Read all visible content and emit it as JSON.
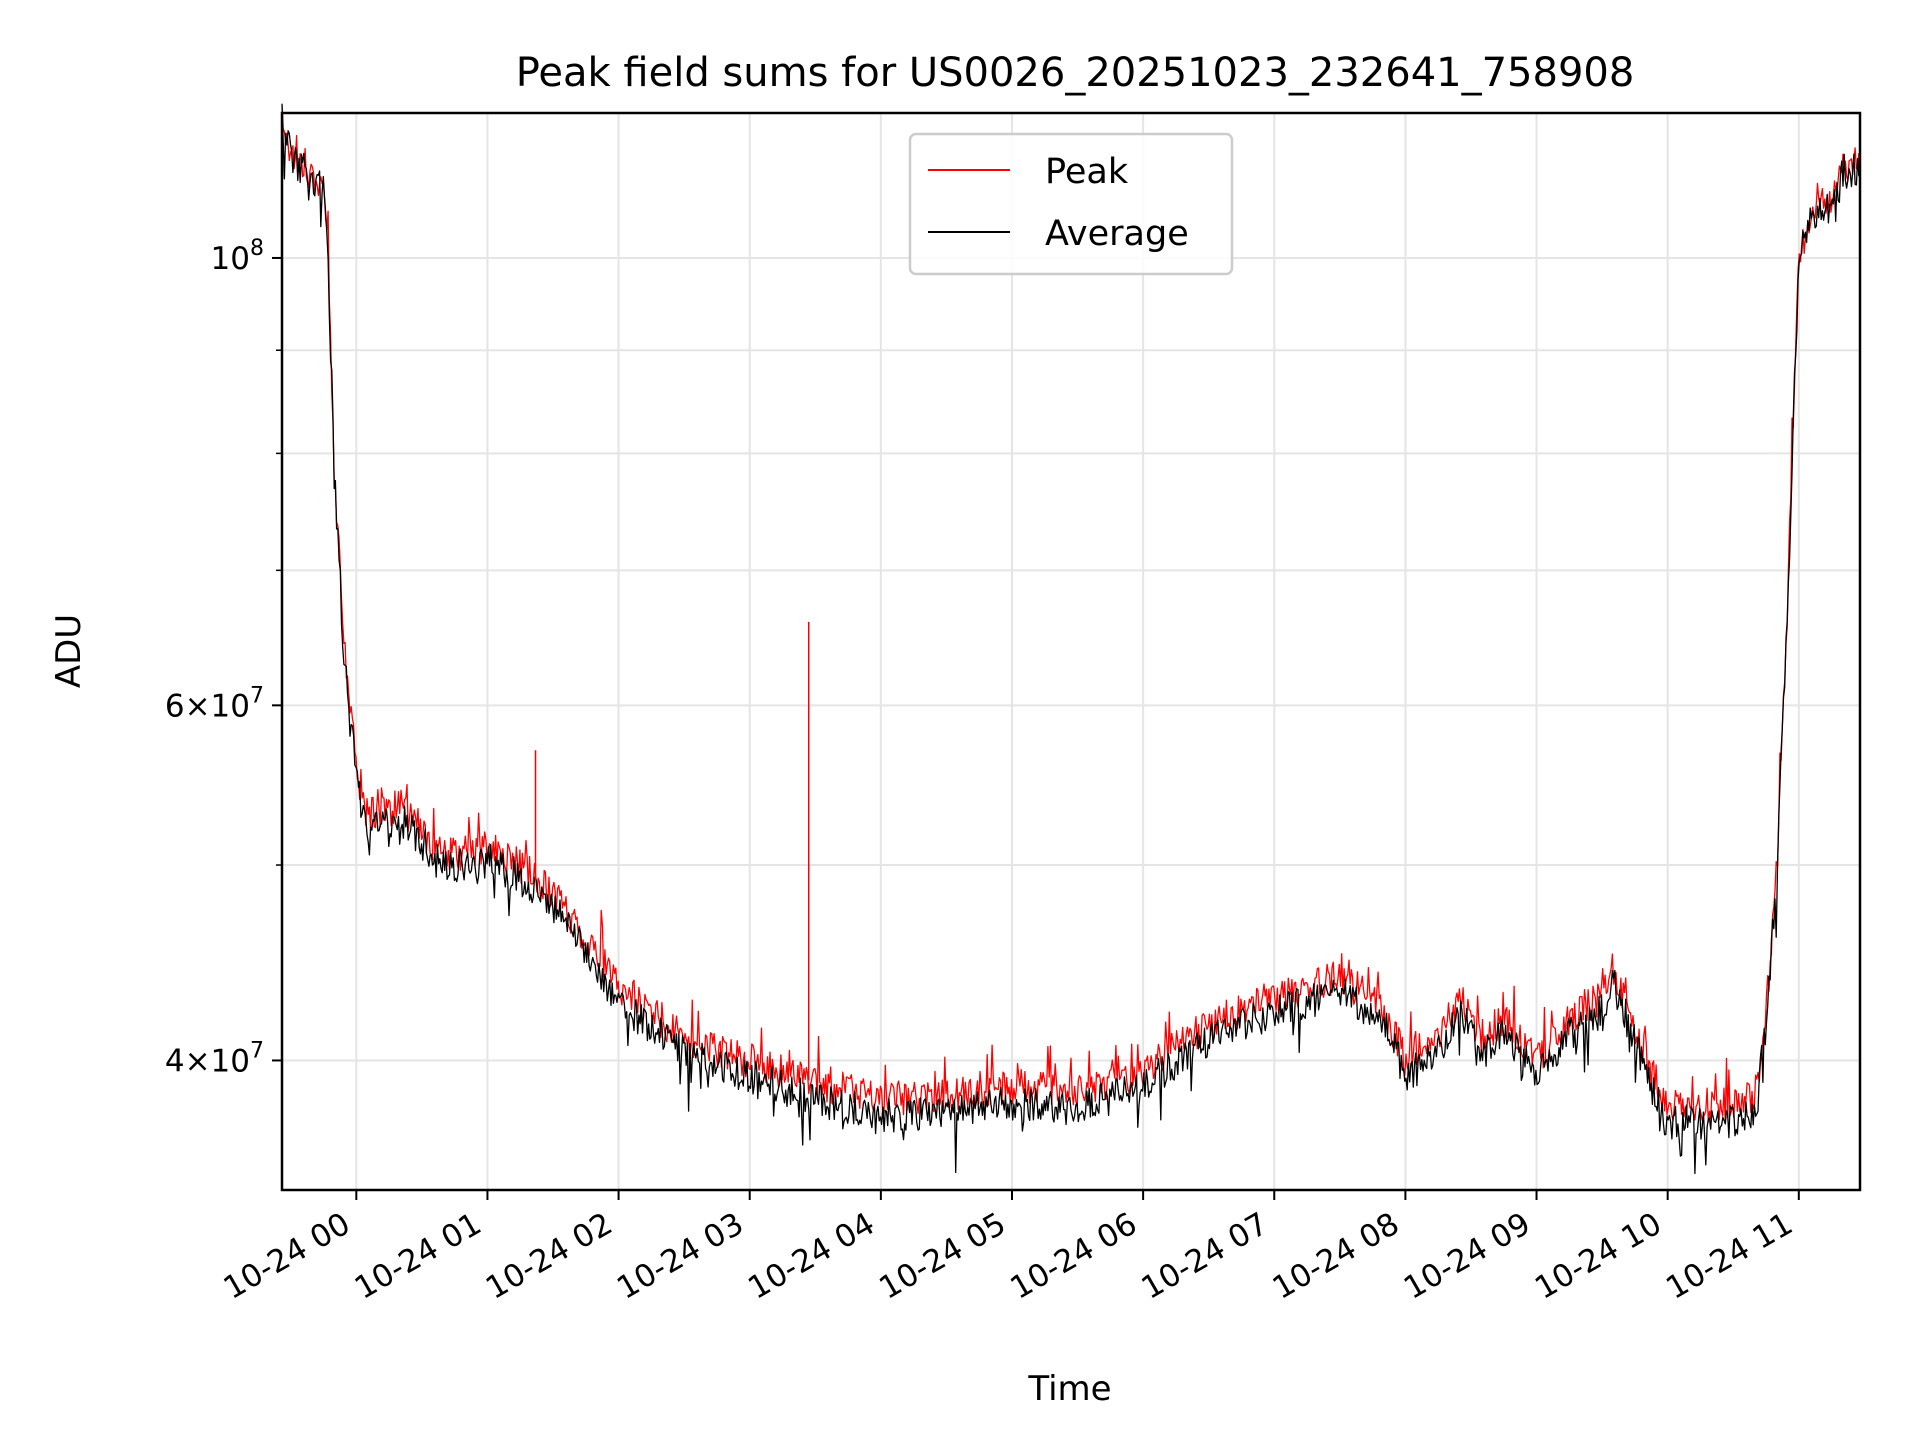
{
  "chart_data": {
    "type": "line",
    "title": "Peak field sums for US0026_20251023_232641_758908",
    "xlabel": "Time",
    "ylabel": "ADU",
    "yscale": "log",
    "grid": true,
    "legend_placement": "upper center",
    "x_range": [
      "2025-10-23 23:26",
      "2025-10-24 11:28"
    ],
    "ylim": [
      34500000,
      118000000
    ],
    "x_ticks": [
      "10-24 00",
      "10-24 01",
      "10-24 02",
      "10-24 03",
      "10-24 04",
      "10-24 05",
      "10-24 06",
      "10-24 07",
      "10-24 08",
      "10-24 09",
      "10-24 10",
      "10-24 11"
    ],
    "y_major_ticks": [
      {
        "value": 100000000,
        "label": "10^8"
      },
      {
        "value": 60000000,
        "label": "6×10^7"
      },
      {
        "value": 40000000,
        "label": "4×10^7"
      }
    ],
    "y_minor_ticks": [
      90000000,
      80000000,
      70000000,
      50000000
    ],
    "series": [
      {
        "name": "Peak",
        "color": "#ff0000",
        "x": [
          "2025-10-23 23:26",
          "2025-10-23 23:30",
          "2025-10-23 23:36",
          "2025-10-23 23:45",
          "2025-10-23 23:47",
          "2025-10-23 23:50",
          "2025-10-23 23:54",
          "2025-10-24 00:00",
          "2025-10-24 00:05",
          "2025-10-24 00:20",
          "2025-10-24 00:30",
          "2025-10-24 00:40",
          "2025-10-24 01:00",
          "2025-10-24 01:15",
          "2025-10-24 01:22",
          "2025-10-24 01:30",
          "2025-10-24 01:45",
          "2025-10-24 02:00",
          "2025-10-24 02:30",
          "2025-10-24 03:00",
          "2025-10-24 03:30",
          "2025-10-24 04:00",
          "2025-10-24 04:30",
          "2025-10-24 05:00",
          "2025-10-24 05:30",
          "2025-10-24 06:00",
          "2025-10-24 06:30",
          "2025-10-24 07:00",
          "2025-10-24 07:30",
          "2025-10-24 07:50",
          "2025-10-24 08:00",
          "2025-10-24 08:15",
          "2025-10-24 08:25",
          "2025-10-24 08:35",
          "2025-10-24 08:45",
          "2025-10-24 09:00",
          "2025-10-24 09:15",
          "2025-10-24 09:30",
          "2025-10-24 09:35",
          "2025-10-24 09:50",
          "2025-10-24 10:00",
          "2025-10-24 10:30",
          "2025-10-24 10:40",
          "2025-10-24 10:45",
          "2025-10-24 10:50",
          "2025-10-24 10:55",
          "2025-10-24 11:00",
          "2025-10-24 11:05",
          "2025-10-24 11:10",
          "2025-10-24 11:15",
          "2025-10-24 11:20",
          "2025-10-24 11:28"
        ],
        "values": [
          117500000,
          113000000,
          111000000,
          108500000,
          100000000,
          78000000,
          65000000,
          55800000,
          53000000,
          53500000,
          52000000,
          50500000,
          51000000,
          50000000,
          49200000,
          48500000,
          46000000,
          43500000,
          41000000,
          40000000,
          39000000,
          38300000,
          38400000,
          38800000,
          38600000,
          39500000,
          41700000,
          43000000,
          44000000,
          42500000,
          40000000,
          41000000,
          43000000,
          41000000,
          42000000,
          40000000,
          42000000,
          43000000,
          44500000,
          40000000,
          38000000,
          38000000,
          38500000,
          42000000,
          50000000,
          68000000,
          100000000,
          105000000,
          106000000,
          107000000,
          111000000,
          111500000
        ]
      },
      {
        "name": "Average",
        "color": "#000000",
        "x": [
          "2025-10-23 23:26",
          "2025-10-23 23:30",
          "2025-10-23 23:36",
          "2025-10-23 23:45",
          "2025-10-23 23:47",
          "2025-10-23 23:50",
          "2025-10-23 23:54",
          "2025-10-24 00:00",
          "2025-10-24 00:05",
          "2025-10-24 00:20",
          "2025-10-24 00:30",
          "2025-10-24 00:40",
          "2025-10-24 01:00",
          "2025-10-24 01:15",
          "2025-10-24 01:22",
          "2025-10-24 01:30",
          "2025-10-24 01:45",
          "2025-10-24 02:00",
          "2025-10-24 02:30",
          "2025-10-24 03:00",
          "2025-10-24 03:30",
          "2025-10-24 04:00",
          "2025-10-24 04:30",
          "2025-10-24 05:00",
          "2025-10-24 05:30",
          "2025-10-24 06:00",
          "2025-10-24 06:30",
          "2025-10-24 07:00",
          "2025-10-24 07:30",
          "2025-10-24 07:50",
          "2025-10-24 08:00",
          "2025-10-24 08:15",
          "2025-10-24 08:25",
          "2025-10-24 08:35",
          "2025-10-24 08:45",
          "2025-10-24 09:00",
          "2025-10-24 09:15",
          "2025-10-24 09:30",
          "2025-10-24 09:35",
          "2025-10-24 09:50",
          "2025-10-24 10:00",
          "2025-10-24 10:30",
          "2025-10-24 10:40",
          "2025-10-24 10:45",
          "2025-10-24 10:50",
          "2025-10-24 10:55",
          "2025-10-24 11:00",
          "2025-10-24 11:05",
          "2025-10-24 11:10",
          "2025-10-24 11:15",
          "2025-10-24 11:20",
          "2025-10-24 11:28"
        ],
        "values": [
          117000000,
          112500000,
          110500000,
          108000000,
          99500000,
          77500000,
          64500000,
          55000000,
          52300000,
          52800000,
          51300000,
          49800000,
          50300000,
          49300000,
          48500000,
          47800000,
          45300000,
          42800000,
          40300000,
          39300000,
          38300000,
          37600000,
          37700000,
          38100000,
          37900000,
          38800000,
          41000000,
          42300000,
          43300000,
          41800000,
          39300000,
          40300000,
          42300000,
          40300000,
          41300000,
          39300000,
          41300000,
          42300000,
          43800000,
          39300000,
          37300000,
          37300000,
          37800000,
          41300000,
          49300000,
          67300000,
          99300000,
          104300000,
          105300000,
          106300000,
          110300000,
          110800000
        ]
      }
    ],
    "spikes": [
      {
        "series": "Peak",
        "x": "2025-10-24 01:22",
        "value": 57000000
      },
      {
        "series": "Peak",
        "x": "2025-10-24 03:27",
        "value": 66000000
      }
    ]
  }
}
